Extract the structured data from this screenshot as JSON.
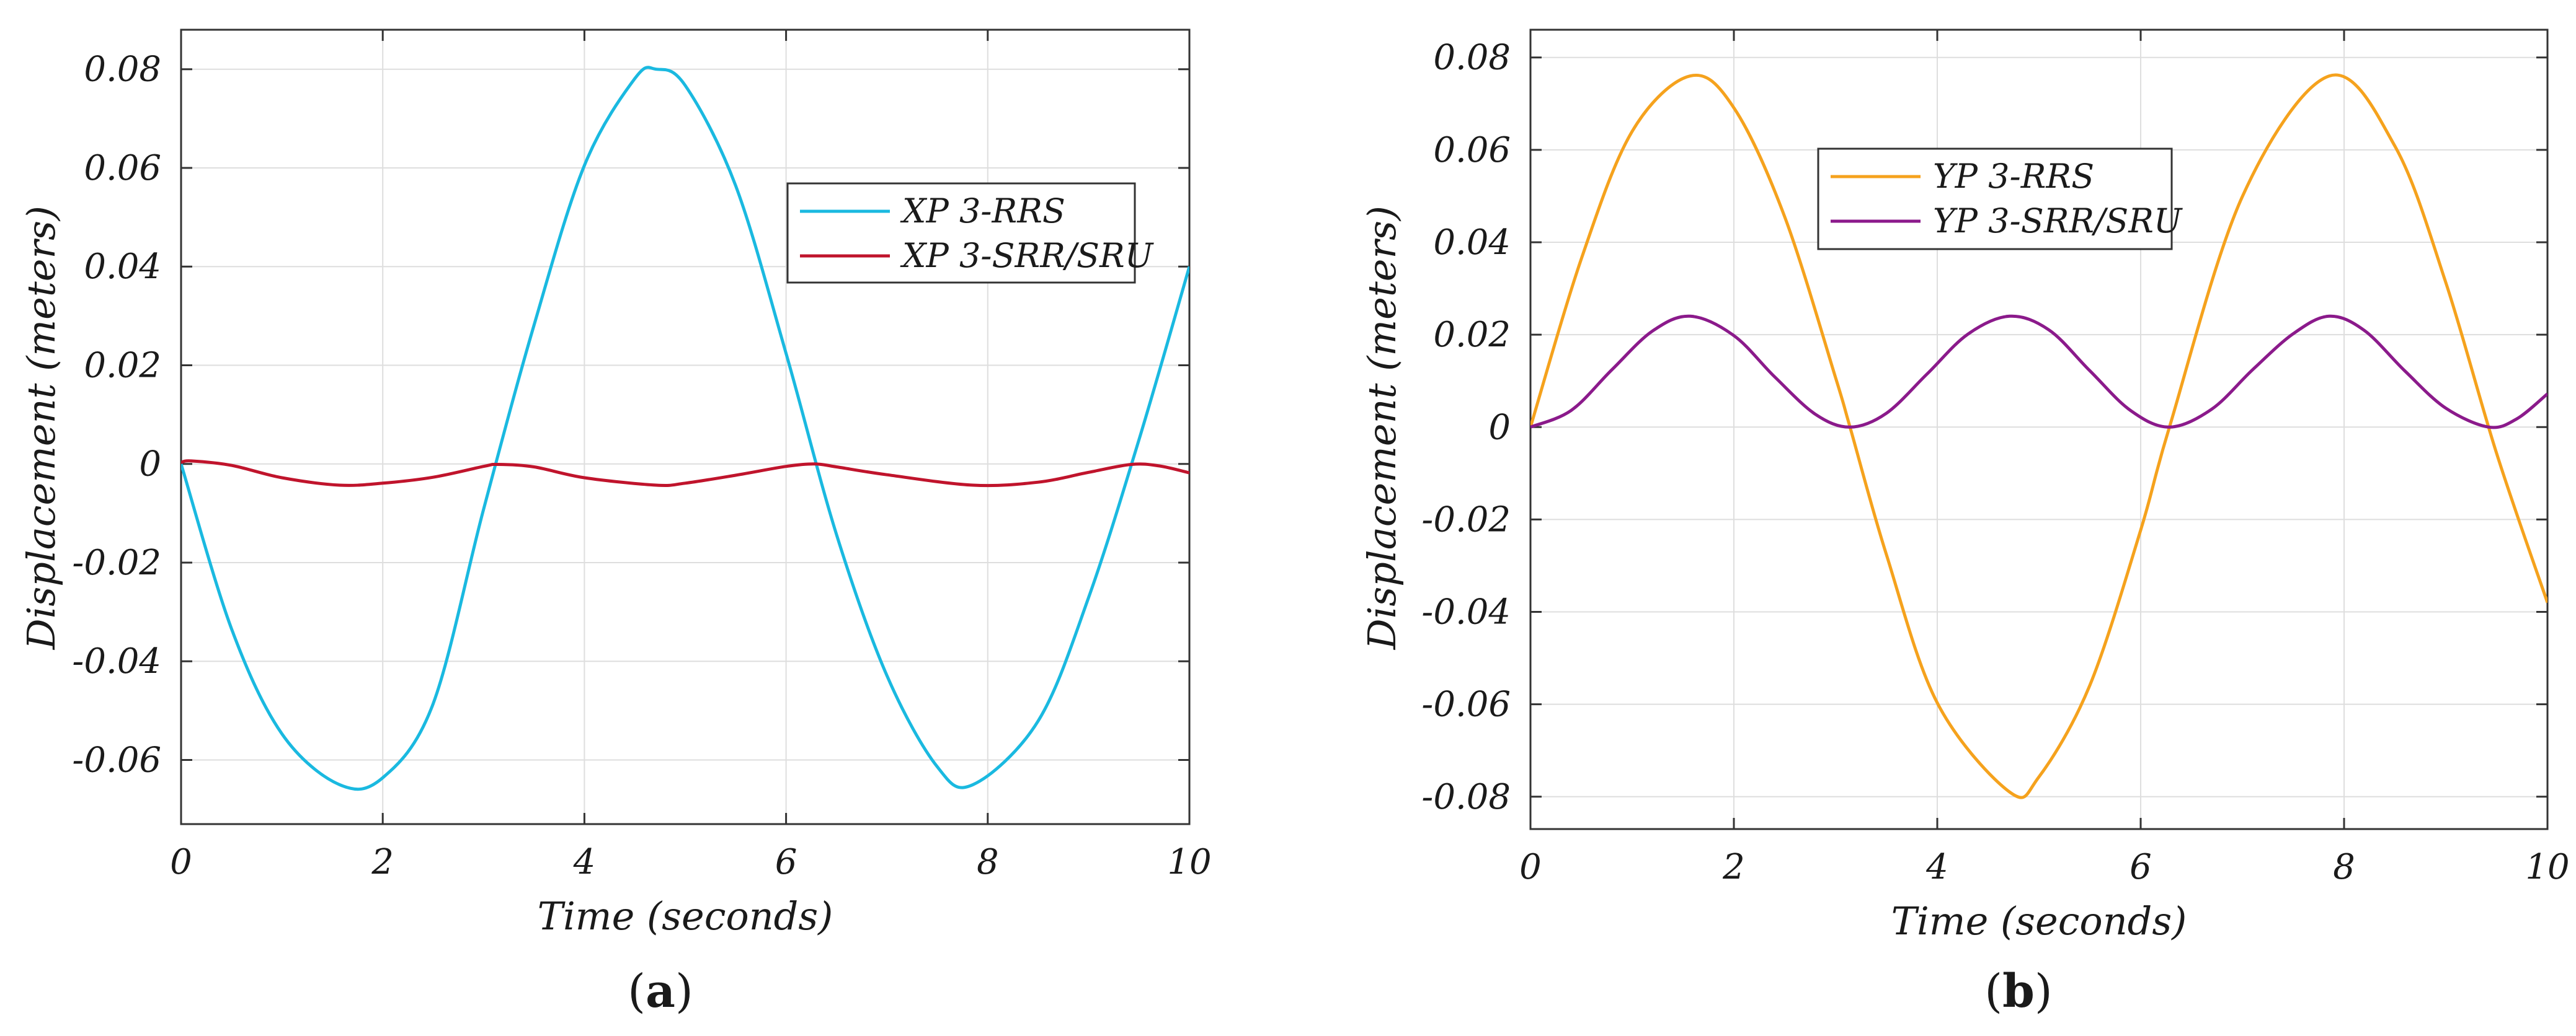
{
  "chart_data": [
    {
      "type": "line",
      "panel_label": "a",
      "xlabel": "Time (seconds)",
      "ylabel": "Displacement (meters)",
      "xlim": [
        0,
        10
      ],
      "ylim": [
        -0.073,
        0.088
      ],
      "xticks": [
        0,
        2,
        4,
        6,
        8,
        10
      ],
      "yticks": [
        -0.06,
        -0.04,
        -0.02,
        0,
        0.02,
        0.04,
        0.06,
        0.08
      ],
      "xtick_labels": [
        "0",
        "2",
        "4",
        "6",
        "8",
        "10"
      ],
      "ytick_labels": [
        "-0.06",
        "-0.04",
        "-0.02",
        "0",
        "0.02",
        "0.04",
        "0.06",
        "0.08"
      ],
      "grid": true,
      "legend_position": "upper-right",
      "series": [
        {
          "name": "XP 3-RRS",
          "color": "#1ab9e0",
          "x": [
            0,
            0.5,
            1,
            1.571,
            2,
            2.5,
            3,
            3.5,
            4,
            4.5,
            4.712,
            5,
            5.5,
            6,
            6.5,
            7,
            7.5,
            7.854,
            8.5,
            9,
            9.5,
            10
          ],
          "y": [
            0,
            -0.0334,
            -0.0547,
            -0.065,
            -0.0636,
            -0.0486,
            -0.0092,
            0.0281,
            0.0605,
            0.0781,
            0.08,
            0.0767,
            0.0564,
            0.0224,
            -0.0143,
            -0.0429,
            -0.0614,
            -0.065,
            -0.0521,
            -0.0271,
            0.0049,
            0.04
          ]
        },
        {
          "name": "XP 3-SRR/SRU",
          "color": "#c0142c",
          "x": [
            0,
            0.1,
            0.5,
            1,
            1.571,
            2,
            2.5,
            3,
            3.142,
            3.5,
            4,
            4.712,
            5,
            5.5,
            6,
            6.283,
            6.5,
            7,
            7.854,
            8.5,
            9,
            9.425,
            9.7,
            10
          ],
          "y": [
            0.0003,
            0.0006,
            -0.0003,
            -0.0028,
            -0.0043,
            -0.0039,
            -0.0027,
            -0.0005,
            -0.0001,
            -0.0006,
            -0.0028,
            -0.0043,
            -0.0039,
            -0.0023,
            -0.0005,
            0,
            -0.0006,
            -0.0022,
            -0.0043,
            -0.0037,
            -0.0017,
            -0.0001,
            -0.0004,
            -0.0018
          ]
        }
      ]
    },
    {
      "type": "line",
      "panel_label": "b",
      "xlabel": "Time (seconds)",
      "ylabel": "Displacement (meters)",
      "xlim": [
        0,
        10
      ],
      "ylim": [
        -0.087,
        0.086
      ],
      "xticks": [
        0,
        2,
        4,
        6,
        8,
        10
      ],
      "yticks": [
        -0.08,
        -0.06,
        -0.04,
        -0.02,
        0,
        0.02,
        0.04,
        0.06,
        0.08
      ],
      "xtick_labels": [
        "0",
        "2",
        "4",
        "6",
        "8",
        "10"
      ],
      "ytick_labels": [
        "-0.08",
        "-0.06",
        "-0.04",
        "-0.02",
        "0",
        "0.02",
        "0.04",
        "0.06",
        "0.08"
      ],
      "grid": true,
      "legend_position": "upper-center",
      "series": [
        {
          "name": "YP 3-RRS",
          "color": "#f5a21d",
          "x": [
            0,
            0.5,
            1,
            1.571,
            2,
            2.5,
            3,
            3.142,
            3.5,
            4,
            4.712,
            5,
            5.5,
            6,
            6.283,
            7,
            7.854,
            8.5,
            9,
            9.5,
            10
          ],
          "y": [
            0,
            0.0364,
            0.064,
            0.076,
            0.0691,
            0.0455,
            0.0107,
            0,
            -0.0276,
            -0.0597,
            -0.079,
            -0.0757,
            -0.0559,
            -0.0223,
            0,
            0.0499,
            0.076,
            0.0608,
            0.0313,
            -0.0057,
            -0.038
          ]
        },
        {
          "name": "YP 3-SRR/SRU",
          "color": "#8b1a8b",
          "x": [
            0,
            0.4,
            0.8,
            1.2,
            1.571,
            2,
            2.4,
            2.8,
            3.142,
            3.5,
            3.9,
            4.3,
            4.712,
            5.1,
            5.5,
            5.9,
            6.283,
            6.7,
            7.1,
            7.5,
            7.854,
            8.2,
            8.6,
            9.0,
            9.425,
            9.7,
            10
          ],
          "y": [
            0,
            0.0036,
            0.0124,
            0.0208,
            0.024,
            0.0198,
            0.0109,
            0.0028,
            0,
            0.003,
            0.0115,
            0.0201,
            0.024,
            0.021,
            0.0122,
            0.0036,
            0,
            0.0039,
            0.0124,
            0.0202,
            0.024,
            0.0209,
            0.0121,
            0.0041,
            0,
            0.0018,
            0.0072
          ]
        }
      ]
    }
  ]
}
